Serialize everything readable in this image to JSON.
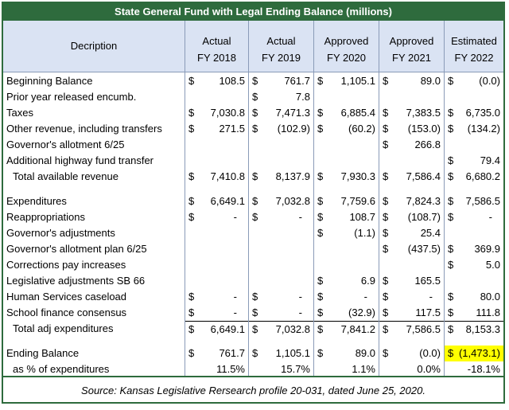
{
  "title": "State General Fund with Legal Ending Balance (millions)",
  "header": {
    "description": "Decription",
    "columns": [
      {
        "l1": "Actual",
        "l2": "FY 2018"
      },
      {
        "l1": "Actual",
        "l2": "FY 2019"
      },
      {
        "l1": "Approved",
        "l2": "FY 2020"
      },
      {
        "l1": "Approved",
        "l2": "FY 2021"
      },
      {
        "l1": "Estimated",
        "l2": "FY 2022"
      }
    ]
  },
  "rows": [
    {
      "label": "Beginning Balance",
      "cells": [
        {
          "c": "$",
          "v": "108.5"
        },
        {
          "c": "$",
          "v": "761.7"
        },
        {
          "c": "$",
          "v": "1,105.1"
        },
        {
          "c": "$",
          "v": "89.0"
        },
        {
          "c": "$",
          "v": "(0.0)"
        }
      ]
    },
    {
      "label": "Prior year released encumb.",
      "cells": [
        {
          "c": "",
          "v": ""
        },
        {
          "c": "$",
          "v": "7.8"
        },
        {
          "c": "",
          "v": ""
        },
        {
          "c": "",
          "v": ""
        },
        {
          "c": "",
          "v": ""
        }
      ]
    },
    {
      "label": "Taxes",
      "cells": [
        {
          "c": "$",
          "v": "7,030.8"
        },
        {
          "c": "$",
          "v": "7,471.3"
        },
        {
          "c": "$",
          "v": "6,885.4"
        },
        {
          "c": "$",
          "v": "7,383.5"
        },
        {
          "c": "$",
          "v": "6,735.0"
        }
      ]
    },
    {
      "label": "Other revenue, including transfers",
      "cells": [
        {
          "c": "$",
          "v": "271.5"
        },
        {
          "c": "$",
          "v": "(102.9)"
        },
        {
          "c": "$",
          "v": "(60.2)"
        },
        {
          "c": "$",
          "v": "(153.0)"
        },
        {
          "c": "$",
          "v": "(134.2)"
        }
      ]
    },
    {
      "label": "Governor's allotment 6/25",
      "cells": [
        {
          "c": "",
          "v": ""
        },
        {
          "c": "",
          "v": ""
        },
        {
          "c": "",
          "v": ""
        },
        {
          "c": "$",
          "v": "266.8"
        },
        {
          "c": "",
          "v": ""
        }
      ]
    },
    {
      "label": "Additional highway fund transfer",
      "cells": [
        {
          "c": "",
          "v": ""
        },
        {
          "c": "",
          "v": ""
        },
        {
          "c": "",
          "v": ""
        },
        {
          "c": "",
          "v": ""
        },
        {
          "c": "$",
          "v": "79.4"
        }
      ]
    },
    {
      "label": "Total available revenue",
      "indent": true,
      "cells": [
        {
          "c": "$",
          "v": "7,410.8"
        },
        {
          "c": "$",
          "v": "8,137.9"
        },
        {
          "c": "$",
          "v": "7,930.3"
        },
        {
          "c": "$",
          "v": "7,586.4"
        },
        {
          "c": "$",
          "v": "6,680.2"
        }
      ]
    },
    {
      "label": "Expenditures",
      "gap": true,
      "cells": [
        {
          "c": "$",
          "v": "6,649.1"
        },
        {
          "c": "$",
          "v": "7,032.8"
        },
        {
          "c": "$",
          "v": "7,759.6"
        },
        {
          "c": "$",
          "v": "7,824.3"
        },
        {
          "c": "$",
          "v": "7,586.5"
        }
      ]
    },
    {
      "label": "Reappropriations",
      "cells": [
        {
          "c": "$",
          "v": "-"
        },
        {
          "c": "$",
          "v": "-"
        },
        {
          "c": "$",
          "v": "108.7"
        },
        {
          "c": "$",
          "v": "(108.7)"
        },
        {
          "c": "$",
          "v": "-"
        }
      ]
    },
    {
      "label": "Governor's adjustments",
      "cells": [
        {
          "c": "",
          "v": ""
        },
        {
          "c": "",
          "v": ""
        },
        {
          "c": "$",
          "v": "(1.1)"
        },
        {
          "c": "$",
          "v": "25.4"
        },
        {
          "c": "",
          "v": ""
        }
      ]
    },
    {
      "label": "Governor's allotment plan 6/25",
      "cells": [
        {
          "c": "",
          "v": ""
        },
        {
          "c": "",
          "v": ""
        },
        {
          "c": "",
          "v": ""
        },
        {
          "c": "$",
          "v": "(437.5)"
        },
        {
          "c": "$",
          "v": "369.9"
        }
      ]
    },
    {
      "label": "Corrections pay increases",
      "cells": [
        {
          "c": "",
          "v": ""
        },
        {
          "c": "",
          "v": ""
        },
        {
          "c": "",
          "v": ""
        },
        {
          "c": "",
          "v": ""
        },
        {
          "c": "$",
          "v": "5.0"
        }
      ]
    },
    {
      "label": "Legislative adjustments SB 66",
      "cells": [
        {
          "c": "",
          "v": ""
        },
        {
          "c": "",
          "v": ""
        },
        {
          "c": "$",
          "v": "6.9"
        },
        {
          "c": "$",
          "v": "165.5"
        },
        {
          "c": "",
          "v": ""
        }
      ]
    },
    {
      "label": "Human Services caseload",
      "cells": [
        {
          "c": "$",
          "v": "-"
        },
        {
          "c": "$",
          "v": "-"
        },
        {
          "c": "$",
          "v": "-"
        },
        {
          "c": "$",
          "v": "-"
        },
        {
          "c": "$",
          "v": "80.0"
        }
      ]
    },
    {
      "label": "School finance consensus",
      "cells": [
        {
          "c": "$",
          "v": "-"
        },
        {
          "c": "$",
          "v": "-"
        },
        {
          "c": "$",
          "v": "(32.9)"
        },
        {
          "c": "$",
          "v": "117.5"
        },
        {
          "c": "$",
          "v": "111.8"
        }
      ]
    },
    {
      "label": "Total adj expenditures",
      "indent": true,
      "topline": true,
      "cells": [
        {
          "c": "$",
          "v": "6,649.1"
        },
        {
          "c": "$",
          "v": "7,032.8"
        },
        {
          "c": "$",
          "v": "7,841.2"
        },
        {
          "c": "$",
          "v": "7,586.5"
        },
        {
          "c": "$",
          "v": "8,153.3"
        }
      ]
    },
    {
      "label": "Ending Balance",
      "gap": true,
      "cells": [
        {
          "c": "$",
          "v": "761.7"
        },
        {
          "c": "$",
          "v": "1,105.1"
        },
        {
          "c": "$",
          "v": "89.0"
        },
        {
          "c": "$",
          "v": "(0.0)"
        },
        {
          "c": "$",
          "v": "(1,473.1)",
          "highlight": true
        }
      ]
    },
    {
      "label": "as % of expenditures",
      "indent": true,
      "pct": true,
      "cells": [
        {
          "c": "",
          "v": "11.5%"
        },
        {
          "c": "",
          "v": "15.7%"
        },
        {
          "c": "",
          "v": "1.1%"
        },
        {
          "c": "",
          "v": "0.0%"
        },
        {
          "c": "",
          "v": "-18.1%"
        }
      ]
    }
  ],
  "source": "Source: Kansas Legislative Rersearch profile 20-031, dated June 25, 2020."
}
